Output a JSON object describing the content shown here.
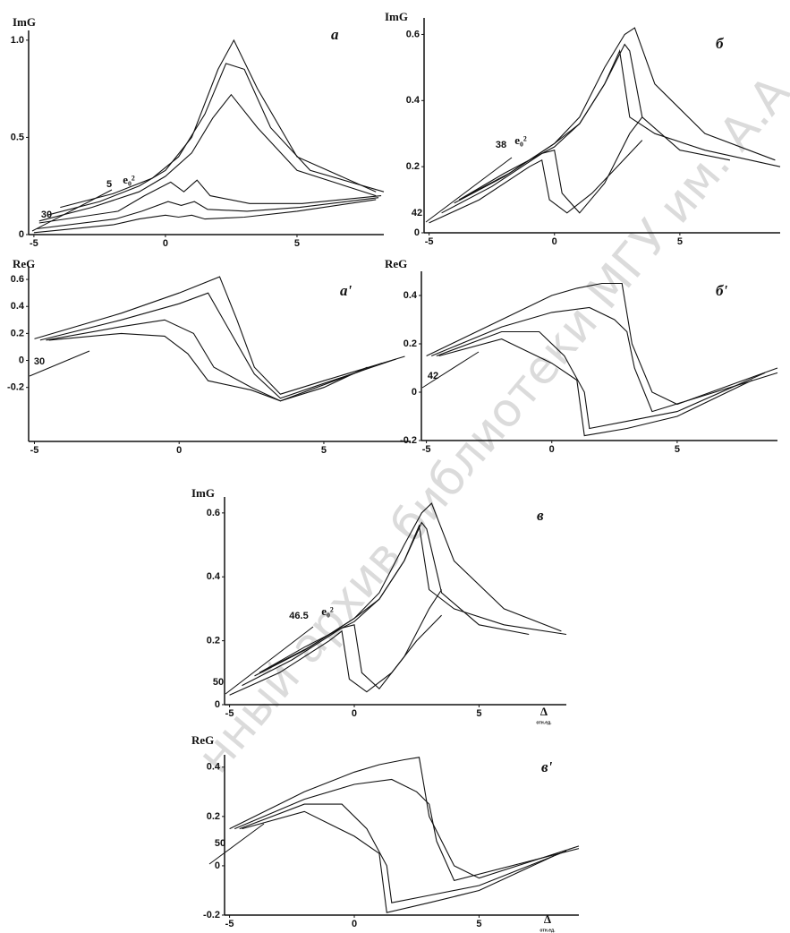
{
  "watermark": "нный архив библиотеки МГУ им. А.А.",
  "chart_data": [
    {
      "type": "line",
      "panel_label": "a",
      "y_label": "ImG",
      "color": "#111",
      "xlim": [
        -5.2,
        8.3
      ],
      "ylim": [
        0,
        1.05
      ],
      "xticks": [
        -5,
        0,
        5
      ],
      "yticks": [
        0,
        0.5,
        {
          "value": 1,
          "label": "1.0"
        }
      ],
      "depth_labels": [
        30,
        5
      ],
      "depth_unit": "e₀²",
      "series": [
        {
          "x": [
            -5,
            -2,
            -1,
            0,
            0.5,
            1,
            1.5,
            3,
            5,
            8
          ],
          "values": [
            0.01,
            0.05,
            0.08,
            0.1,
            0.09,
            0.1,
            0.08,
            0.09,
            0.12,
            0.18
          ]
        },
        {
          "x": [
            -4.9,
            -1.9,
            -0.9,
            0.1,
            0.6,
            1.1,
            1.6,
            3.1,
            5.1,
            8.1
          ],
          "values": [
            0.03,
            0.08,
            0.12,
            0.17,
            0.15,
            0.17,
            0.13,
            0.12,
            0.14,
            0.19
          ]
        },
        {
          "x": [
            -4.8,
            -1.8,
            -0.8,
            0.2,
            0.7,
            1.2,
            1.7,
            3.2,
            5.2,
            8.2
          ],
          "values": [
            0.06,
            0.12,
            0.2,
            0.27,
            0.22,
            0.28,
            0.2,
            0.16,
            0.16,
            0.2
          ]
        },
        {
          "x": [
            -4.8,
            -2.8,
            -1,
            0,
            1,
            1.8,
            2.5,
            3.5,
            5,
            8
          ],
          "values": [
            0.07,
            0.14,
            0.22,
            0.3,
            0.42,
            0.6,
            0.72,
            0.55,
            0.33,
            0.2
          ]
        },
        {
          "x": [
            -4.5,
            -2.5,
            -1,
            0,
            1,
            2,
            2.6,
            3.5,
            5,
            8
          ],
          "values": [
            0.1,
            0.17,
            0.25,
            0.33,
            0.5,
            0.85,
            1,
            0.75,
            0.4,
            0.22
          ]
        },
        {
          "x": [
            -4,
            -2,
            -0.5,
            0.5,
            1.5,
            2.3,
            3,
            4,
            5.5,
            8.3
          ],
          "values": [
            0.14,
            0.21,
            0.29,
            0.4,
            0.62,
            0.88,
            0.85,
            0.55,
            0.33,
            0.22
          ]
        }
      ]
    },
    {
      "type": "line",
      "panel_label": "б",
      "y_label": "ImG",
      "color": "#111",
      "xlim": [
        -5.2,
        9
      ],
      "ylim": [
        0,
        0.65
      ],
      "xticks": [
        -5,
        0,
        5
      ],
      "yticks": [
        0,
        0.2,
        0.4,
        0.6
      ],
      "depth_labels": [
        42,
        38
      ],
      "depth_unit": "e₀²",
      "series": [
        {
          "x": [
            -5,
            -3,
            -1,
            -0.5,
            -0.2,
            0.5,
            1.5,
            2.5,
            3.5
          ],
          "values": [
            0.03,
            0.1,
            0.2,
            0.22,
            0.1,
            0.06,
            0.12,
            0.2,
            0.28
          ]
        },
        {
          "x": [
            -4.5,
            -2.5,
            -0.5,
            0,
            0.3,
            1,
            2,
            3,
            3.5
          ],
          "values": [
            0.06,
            0.14,
            0.24,
            0.25,
            0.12,
            0.06,
            0.15,
            0.3,
            0.35
          ]
        },
        {
          "x": [
            -4,
            -2,
            0,
            1,
            2,
            2.6,
            3,
            4,
            6,
            9
          ],
          "values": [
            0.09,
            0.17,
            0.27,
            0.33,
            0.45,
            0.55,
            0.35,
            0.3,
            0.25,
            0.2
          ]
        },
        {
          "x": [
            -3.8,
            -2,
            0,
            1,
            2,
            2.8,
            3,
            3.5,
            5,
            7
          ],
          "values": [
            0.1,
            0.18,
            0.26,
            0.33,
            0.45,
            0.57,
            0.55,
            0.35,
            0.25,
            0.22
          ]
        },
        {
          "x": [
            -3.8,
            -1.8,
            0,
            1,
            2,
            2.8,
            3.2,
            4,
            6,
            8.8
          ],
          "values": [
            0.1,
            0.18,
            0.27,
            0.35,
            0.5,
            0.6,
            0.62,
            0.45,
            0.3,
            0.22
          ]
        }
      ]
    },
    {
      "type": "line",
      "panel_label": "a'",
      "y_label": "ReG",
      "color": "#111",
      "xlim": [
        -5.2,
        8
      ],
      "ylim": [
        -0.6,
        0.7
      ],
      "xticks": [
        -5,
        0,
        5
      ],
      "yticks": [
        -0.2,
        0,
        0.2,
        0.4,
        0.6
      ],
      "depth_labels": [
        30
      ],
      "series": [
        {
          "x": [
            -4.5,
            -2,
            -0.5,
            0.3,
            1,
            2.5,
            3.5,
            5,
            6.5
          ],
          "values": [
            0.15,
            0.2,
            0.18,
            0.05,
            -0.15,
            -0.22,
            -0.3,
            -0.2,
            -0.05
          ]
        },
        {
          "x": [
            -4.6,
            -2,
            -0.5,
            0.5,
            1.2,
            2.5,
            3.5,
            5,
            7
          ],
          "values": [
            0.15,
            0.25,
            0.3,
            0.2,
            -0.05,
            -0.2,
            -0.3,
            -0.18,
            -0.02
          ]
        },
        {
          "x": [
            -4.8,
            -2,
            0,
            1,
            1.8,
            2.6,
            3.5,
            5,
            7.5
          ],
          "values": [
            0.15,
            0.3,
            0.42,
            0.5,
            0.2,
            -0.1,
            -0.28,
            -0.17,
            0.01
          ]
        },
        {
          "x": [
            -5,
            -2,
            0,
            1.4,
            2,
            2.6,
            3.5,
            5,
            7.8
          ],
          "values": [
            0.16,
            0.35,
            0.5,
            0.62,
            0.3,
            -0.05,
            -0.25,
            -0.15,
            0.03
          ]
        }
      ]
    },
    {
      "type": "line",
      "panel_label": "б'",
      "y_label": "ReG",
      "color": "#111",
      "xlim": [
        -5.2,
        9
      ],
      "ylim": [
        -0.2,
        0.5
      ],
      "xticks": [
        -5,
        0,
        5
      ],
      "yticks": [
        -0.2,
        0,
        0.2,
        0.4
      ],
      "depth_labels": [
        42
      ],
      "series": [
        {
          "x": [
            -4.5,
            -2,
            -1,
            0,
            1,
            1.3,
            3,
            5,
            8
          ],
          "values": [
            0.15,
            0.22,
            0.17,
            0.12,
            0.05,
            -0.18,
            -0.15,
            -0.1,
            0.05
          ]
        },
        {
          "x": [
            -4.6,
            -2,
            -0.5,
            0.5,
            1.3,
            1.5,
            3,
            5,
            8.5
          ],
          "values": [
            0.15,
            0.25,
            0.25,
            0.15,
            0,
            -0.15,
            -0.12,
            -0.08,
            0.08
          ]
        },
        {
          "x": [
            -4.8,
            -2,
            0,
            1.5,
            2.5,
            3,
            3.3,
            4,
            9
          ],
          "values": [
            0.15,
            0.27,
            0.33,
            0.35,
            0.3,
            0.25,
            0.1,
            -0.08,
            0.08
          ]
        },
        {
          "x": [
            -5,
            -2,
            0,
            1,
            2,
            2.8,
            3.2,
            4,
            5,
            9
          ],
          "values": [
            0.15,
            0.3,
            0.4,
            0.43,
            0.45,
            0.45,
            0.2,
            0,
            -0.05,
            0.1
          ]
        }
      ]
    },
    {
      "type": "line",
      "panel_label": "в",
      "y_label": "ImG",
      "x_label": "Δ",
      "x_unit": "отн.ед.",
      "color": "#111",
      "xlim": [
        -5.2,
        8.5
      ],
      "ylim": [
        0,
        0.65
      ],
      "xticks": [
        -5,
        0,
        5
      ],
      "yticks": [
        0,
        0.2,
        0.4,
        0.6
      ],
      "depth_labels": [
        50,
        46.5
      ],
      "depth_unit": "e₀²",
      "series": [
        {
          "x": [
            -5,
            -3,
            -1,
            -0.5,
            -0.2,
            0.5,
            1.5,
            2.5,
            3.5
          ],
          "values": [
            0.03,
            0.1,
            0.2,
            0.23,
            0.08,
            0.04,
            0.1,
            0.2,
            0.28
          ]
        },
        {
          "x": [
            -4.5,
            -2.5,
            -0.5,
            0,
            0.3,
            1,
            2,
            3,
            3.5
          ],
          "values": [
            0.06,
            0.14,
            0.24,
            0.25,
            0.1,
            0.05,
            0.15,
            0.3,
            0.36
          ]
        },
        {
          "x": [
            -4,
            -2,
            0,
            1,
            2,
            2.6,
            3,
            4,
            6,
            8.5
          ],
          "values": [
            0.09,
            0.17,
            0.27,
            0.33,
            0.45,
            0.56,
            0.36,
            0.3,
            0.25,
            0.22
          ]
        },
        {
          "x": [
            -3.8,
            -2,
            0,
            1,
            2,
            2.7,
            2.9,
            3.5,
            5,
            7
          ],
          "values": [
            0.1,
            0.18,
            0.26,
            0.33,
            0.45,
            0.57,
            0.55,
            0.35,
            0.25,
            0.22
          ]
        },
        {
          "x": [
            -3.8,
            -1.8,
            0,
            1,
            2,
            2.7,
            3.1,
            4,
            6,
            8.3
          ],
          "values": [
            0.1,
            0.18,
            0.27,
            0.35,
            0.5,
            0.6,
            0.63,
            0.45,
            0.3,
            0.23
          ]
        }
      ]
    },
    {
      "type": "line",
      "panel_label": "в'",
      "y_label": "ReG",
      "x_label": "Δ",
      "x_unit": "отн.ед.",
      "color": "#111",
      "xlim": [
        -5.2,
        9
      ],
      "ylim": [
        -0.2,
        0.45
      ],
      "xticks": [
        -5,
        0,
        5
      ],
      "yticks": [
        -0.2,
        0,
        0.2,
        0.4
      ],
      "depth_labels": [
        50
      ],
      "series": [
        {
          "x": [
            -4.5,
            -2,
            -1,
            0,
            1,
            1.3,
            3,
            5,
            8
          ],
          "values": [
            0.15,
            0.22,
            0.17,
            0.12,
            0.05,
            -0.19,
            -0.15,
            -0.1,
            0.04
          ]
        },
        {
          "x": [
            -4.6,
            -2,
            -0.5,
            0.5,
            1.3,
            1.5,
            3,
            5,
            8.5
          ],
          "values": [
            0.15,
            0.25,
            0.25,
            0.15,
            0,
            -0.15,
            -0.12,
            -0.08,
            0.06
          ]
        },
        {
          "x": [
            -4.8,
            -2,
            0,
            1.5,
            2.5,
            3,
            3.3,
            4,
            9
          ],
          "values": [
            0.15,
            0.27,
            0.33,
            0.35,
            0.3,
            0.25,
            0.1,
            -0.06,
            0.07
          ]
        },
        {
          "x": [
            -5,
            -2,
            0,
            1,
            2,
            2.6,
            3,
            4,
            5,
            9
          ],
          "values": [
            0.15,
            0.3,
            0.38,
            0.41,
            0.43,
            0.44,
            0.2,
            0,
            -0.05,
            0.08
          ]
        }
      ]
    }
  ]
}
